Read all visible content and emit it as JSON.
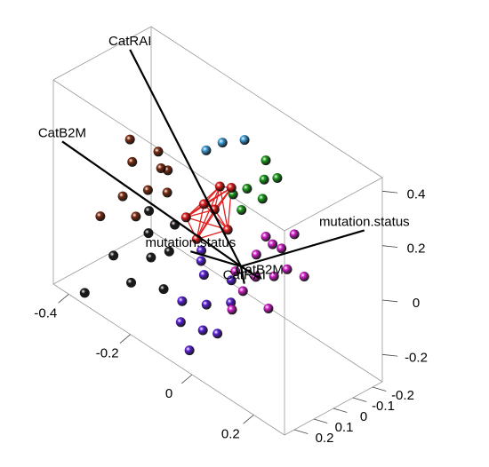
{
  "chart_data": {
    "type": "scatter3d",
    "xlim": [
      -0.45,
      0.3
    ],
    "ylim": [
      -0.25,
      0.25
    ],
    "zlim": [
      -0.3,
      0.45
    ],
    "xticks": [
      -0.4,
      -0.2,
      0,
      0.2
    ],
    "yticks": [
      -0.2,
      -0.1,
      0,
      0.1,
      0.2
    ],
    "zticks": [
      -0.2,
      0,
      0.2,
      0.4
    ],
    "series": [
      {
        "color": "#7a2a10",
        "x": [
          -0.34,
          -0.3,
          -0.27,
          -0.32,
          -0.25,
          -0.36,
          -0.29,
          -0.22,
          -0.38,
          -0.31
        ],
        "y": [
          0.02,
          -0.05,
          0.05,
          0.1,
          -0.02,
          0.0,
          0.08,
          0.03,
          0.12,
          -0.08
        ],
        "z": [
          0.14,
          0.18,
          0.1,
          0.06,
          0.16,
          0.2,
          0.0,
          0.12,
          -0.05,
          0.1
        ]
      },
      {
        "color": "#1a1a1a",
        "x": [
          -0.3,
          -0.26,
          -0.33,
          -0.22,
          -0.35,
          -0.28,
          -0.24,
          -0.38,
          -0.2
        ],
        "y": [
          0.0,
          0.05,
          -0.05,
          0.02,
          0.1,
          0.12,
          -0.04,
          0.2,
          0.08
        ],
        "z": [
          -0.1,
          -0.14,
          -0.06,
          -0.1,
          -0.18,
          -0.22,
          -0.04,
          -0.3,
          -0.2
        ]
      },
      {
        "color": "#5a20d8",
        "x": [
          -0.12,
          -0.08,
          -0.05,
          -0.14,
          -0.02,
          -0.1,
          -0.06,
          -0.16,
          0.0,
          -0.04,
          -0.11
        ],
        "y": [
          0.0,
          0.05,
          -0.03,
          0.08,
          0.02,
          0.15,
          0.1,
          -0.05,
          0.12,
          0.2,
          0.03
        ],
        "z": [
          -0.12,
          -0.18,
          -0.1,
          -0.2,
          -0.14,
          -0.22,
          -0.24,
          -0.08,
          -0.2,
          -0.26,
          -0.05
        ]
      },
      {
        "color": "#d020c8",
        "x": [
          0.05,
          0.1,
          0.08,
          0.12,
          0.03,
          0.15,
          0.07,
          0.11,
          0.02,
          0.14,
          0.09,
          0.06,
          0.18
        ],
        "y": [
          0.0,
          -0.05,
          0.05,
          0.02,
          -0.08,
          0.0,
          0.1,
          -0.1,
          0.06,
          0.08,
          -0.02,
          0.14,
          -0.04
        ],
        "z": [
          0.08,
          0.12,
          0.04,
          0.06,
          0.1,
          0.1,
          0.0,
          0.16,
          0.02,
          -0.02,
          0.14,
          -0.06,
          0.08
        ]
      },
      {
        "color": "#1a9a1a",
        "x": [
          0.02,
          0.05,
          0.0,
          0.07,
          0.03,
          0.04,
          0.08
        ],
        "y": [
          0.0,
          -0.04,
          0.04,
          0.0,
          -0.08,
          0.06,
          -0.06
        ],
        "z": [
          0.3,
          0.34,
          0.28,
          0.3,
          0.38,
          0.26,
          0.36
        ]
      },
      {
        "color": "#e02020",
        "connected": true,
        "x": [
          -0.12,
          -0.06,
          -0.1,
          -0.03,
          -0.14,
          -0.08,
          -0.05
        ],
        "y": [
          0.0,
          0.04,
          -0.05,
          0.02,
          0.06,
          0.1,
          -0.03
        ],
        "z": [
          0.14,
          0.18,
          0.2,
          0.12,
          0.1,
          0.08,
          0.24
        ]
      },
      {
        "color": "#3a9ad8",
        "x": [
          -0.06,
          -0.02,
          -0.1
        ],
        "y": [
          0.0,
          -0.05,
          0.02
        ],
        "z": [
          0.41,
          0.43,
          0.36
        ]
      }
    ],
    "arrows": [
      {
        "label": "CatRAI",
        "x": -0.36,
        "y": 0,
        "z": 0.53
      },
      {
        "label": "CatB2M",
        "x": -0.58,
        "y": 0,
        "z": 0.03
      },
      {
        "label": "mutation.status",
        "x": 0.21,
        "y": -0.3,
        "z": 0.17
      },
      {
        "label": "mutation.status",
        "x": -0.1,
        "y": 0.1,
        "z": 0.02
      },
      {
        "label": "CatB2M",
        "x": 0.06,
        "y": 0,
        "z": 0
      },
      {
        "label": "CatRAI",
        "x": 0.03,
        "y": 0.03,
        "z": -0.03
      }
    ]
  }
}
